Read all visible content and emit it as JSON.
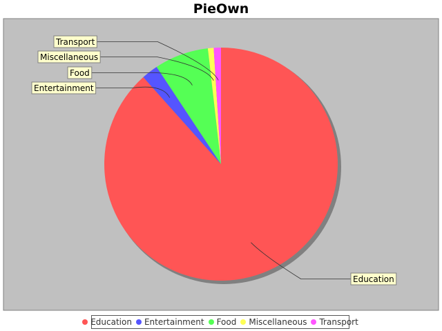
{
  "chart_data": {
    "type": "pie",
    "title": "PieOwn",
    "categories": [
      "Education",
      "Entertainment",
      "Food",
      "Miscellaneous",
      "Transport"
    ],
    "values": [
      88.4,
      2.3,
      7.5,
      0.8,
      1.0
    ],
    "colors": [
      "#ff5555",
      "#5555ff",
      "#55ff55",
      "#ffff55",
      "#ff55ff"
    ],
    "legend_position": "bottom",
    "plot_background": "#c0c0c0",
    "label_background": "#ffffcc"
  }
}
